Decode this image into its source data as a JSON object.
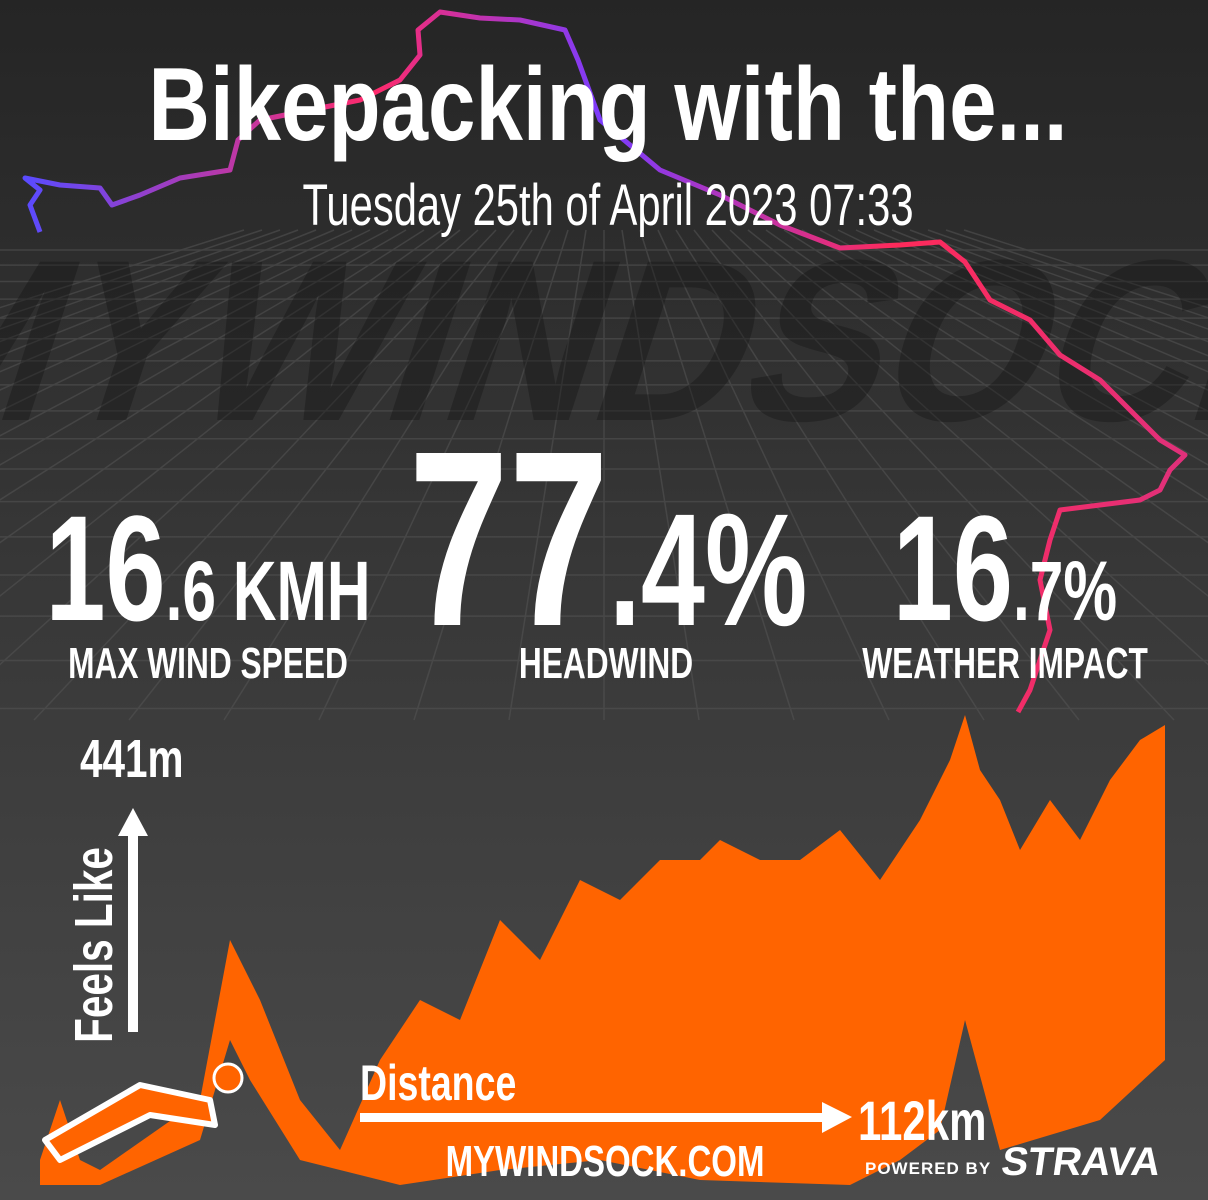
{
  "header": {
    "title": "Bikepacking with the...",
    "date": "Tuesday 25th of April 2023 07:33",
    "watermark": "MYWINDSOCK"
  },
  "stats": [
    {
      "main": "16",
      "rest": ".6 KMH",
      "label": "MAX WIND SPEED"
    },
    {
      "main": "77",
      "rest": ".4%",
      "label": "HEADWIND"
    },
    {
      "main": "16",
      "rest": ".7%",
      "label": "WEATHER IMPACT"
    }
  ],
  "profile": {
    "top_label": "441m",
    "y_label": "Feels Like",
    "x_label": "Distance",
    "end_label": "112km"
  },
  "footer": {
    "site": "MYWINDSOCK.COM",
    "powered": "POWERED BY",
    "brand": "STRAVA"
  }
}
